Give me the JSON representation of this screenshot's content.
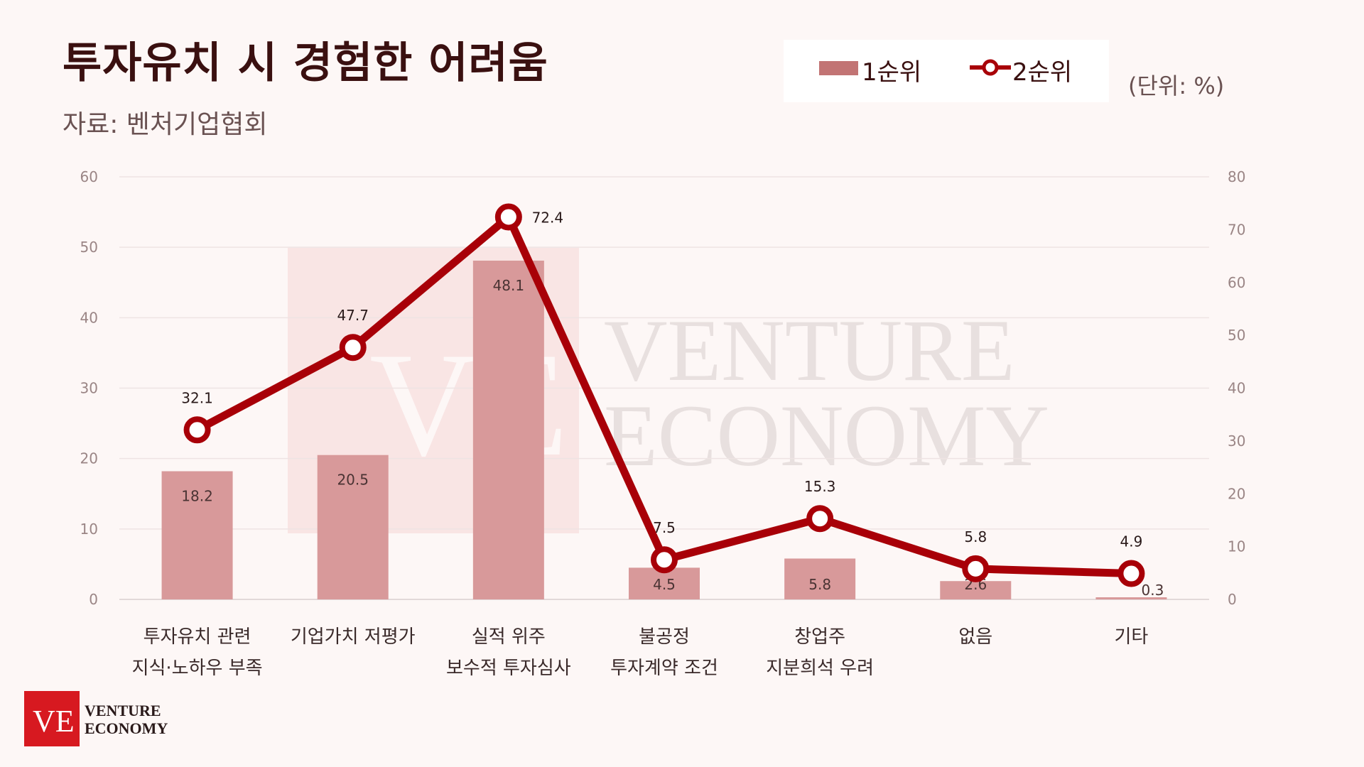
{
  "title": "투자유치 시 경험한 어려움",
  "source": "자료: 벤처기업협회",
  "unit": "(단위: %)",
  "colors": {
    "bar": "#d8999a",
    "bar_legend": "#c27474",
    "line": "#a80008",
    "title": "#3a1010",
    "logo_red": "#d71920"
  },
  "chart_data": {
    "type": "bar",
    "categories": [
      [
        "투자유치 관련",
        "지식·노하우 부족"
      ],
      [
        "기업가치 저평가"
      ],
      [
        "실적 위주",
        "보수적 투자심사"
      ],
      [
        "불공정",
        "투자계약 조건"
      ],
      [
        "창업주",
        "지분희석 우려"
      ],
      [
        "없음"
      ],
      [
        "기타"
      ]
    ],
    "series": [
      {
        "name": "1순위",
        "type": "bar",
        "axis": "left",
        "values": [
          18.2,
          20.5,
          48.1,
          4.5,
          5.8,
          2.6,
          0.3
        ]
      },
      {
        "name": "2순위",
        "type": "line",
        "axis": "right",
        "values": [
          32.1,
          47.7,
          72.4,
          7.5,
          15.3,
          5.8,
          4.9
        ]
      }
    ],
    "y_left": {
      "range": [
        0,
        60
      ],
      "ticks": [
        "0",
        "10",
        "20",
        "30",
        "40",
        "50",
        "60"
      ]
    },
    "y_right": {
      "range": [
        0,
        80
      ],
      "ticks": [
        "0",
        "10",
        "20",
        "30",
        "40",
        "50",
        "60",
        "70",
        "80"
      ]
    },
    "grid": true,
    "legend": "top-right"
  },
  "watermark": {
    "initials": "VE",
    "line1": "VENTURE",
    "line2": "ECONOMY"
  },
  "logo": {
    "initials": "VE",
    "line1": "VENTURE",
    "line2": "ECONOMY"
  }
}
